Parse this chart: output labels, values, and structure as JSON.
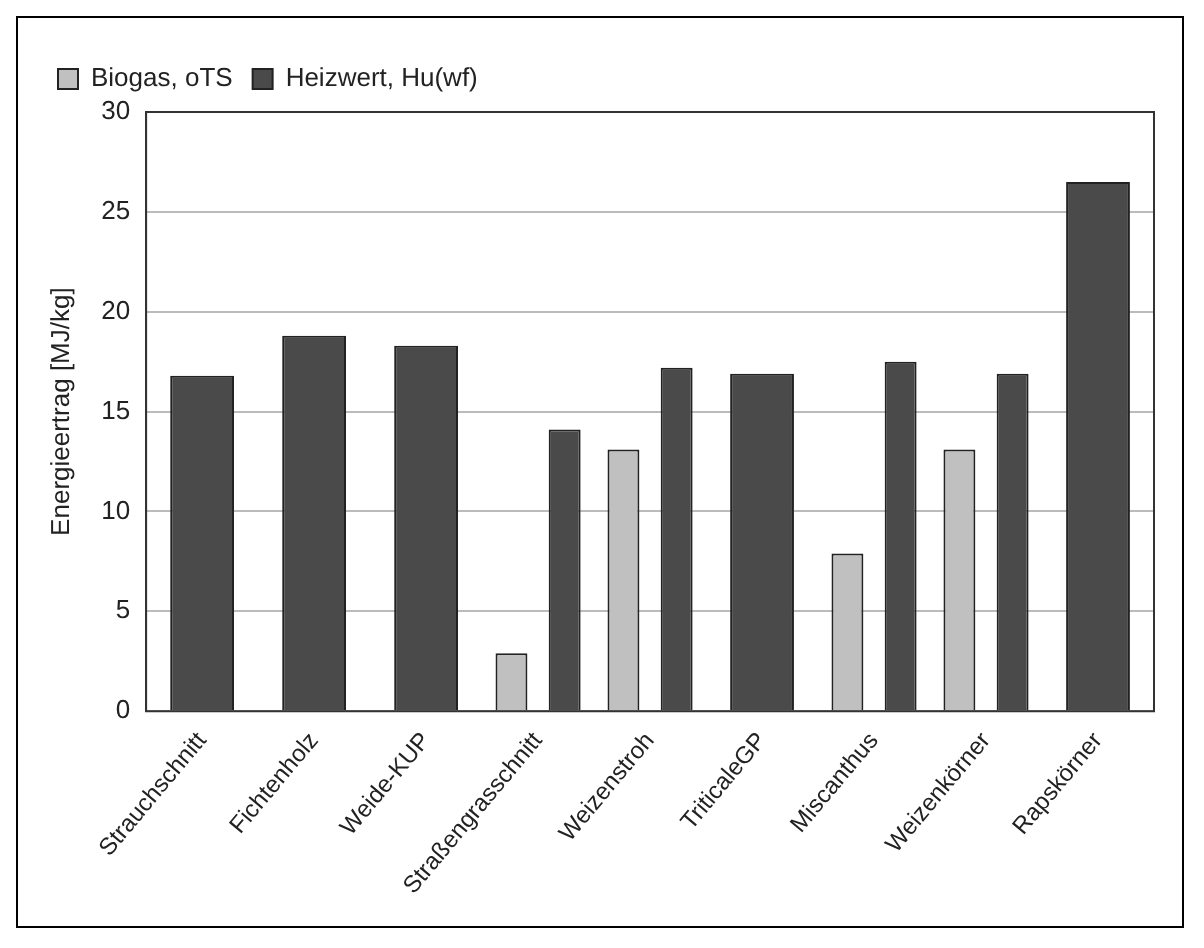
{
  "chart_data": {
    "type": "bar",
    "ylabel": "Energieertrag [MJ/kg]",
    "categories": [
      "Strauchschnitt",
      "Fichtenholz",
      "Weide-KUP",
      "Straßengrasschnitt",
      "Weizenstroh",
      "TriticaleGP",
      "Miscanthus",
      "Weizenkörner",
      "Rapskörner"
    ],
    "series": [
      {
        "name": "Biogas, oTS",
        "color": "#c0c0c0",
        "values": [
          null,
          null,
          null,
          2.9,
          13.1,
          null,
          7.9,
          13.1,
          null
        ]
      },
      {
        "name": "Heizwert, Hu(wf)",
        "color": "#4a4a4a",
        "values": [
          16.8,
          18.8,
          18.3,
          14.1,
          17.2,
          16.9,
          17.5,
          16.9,
          26.5
        ]
      }
    ],
    "ylim": [
      0,
      30
    ],
    "yticks": [
      0,
      5,
      10,
      15,
      20,
      25,
      30
    ],
    "grid": "y",
    "legend": "top left"
  }
}
